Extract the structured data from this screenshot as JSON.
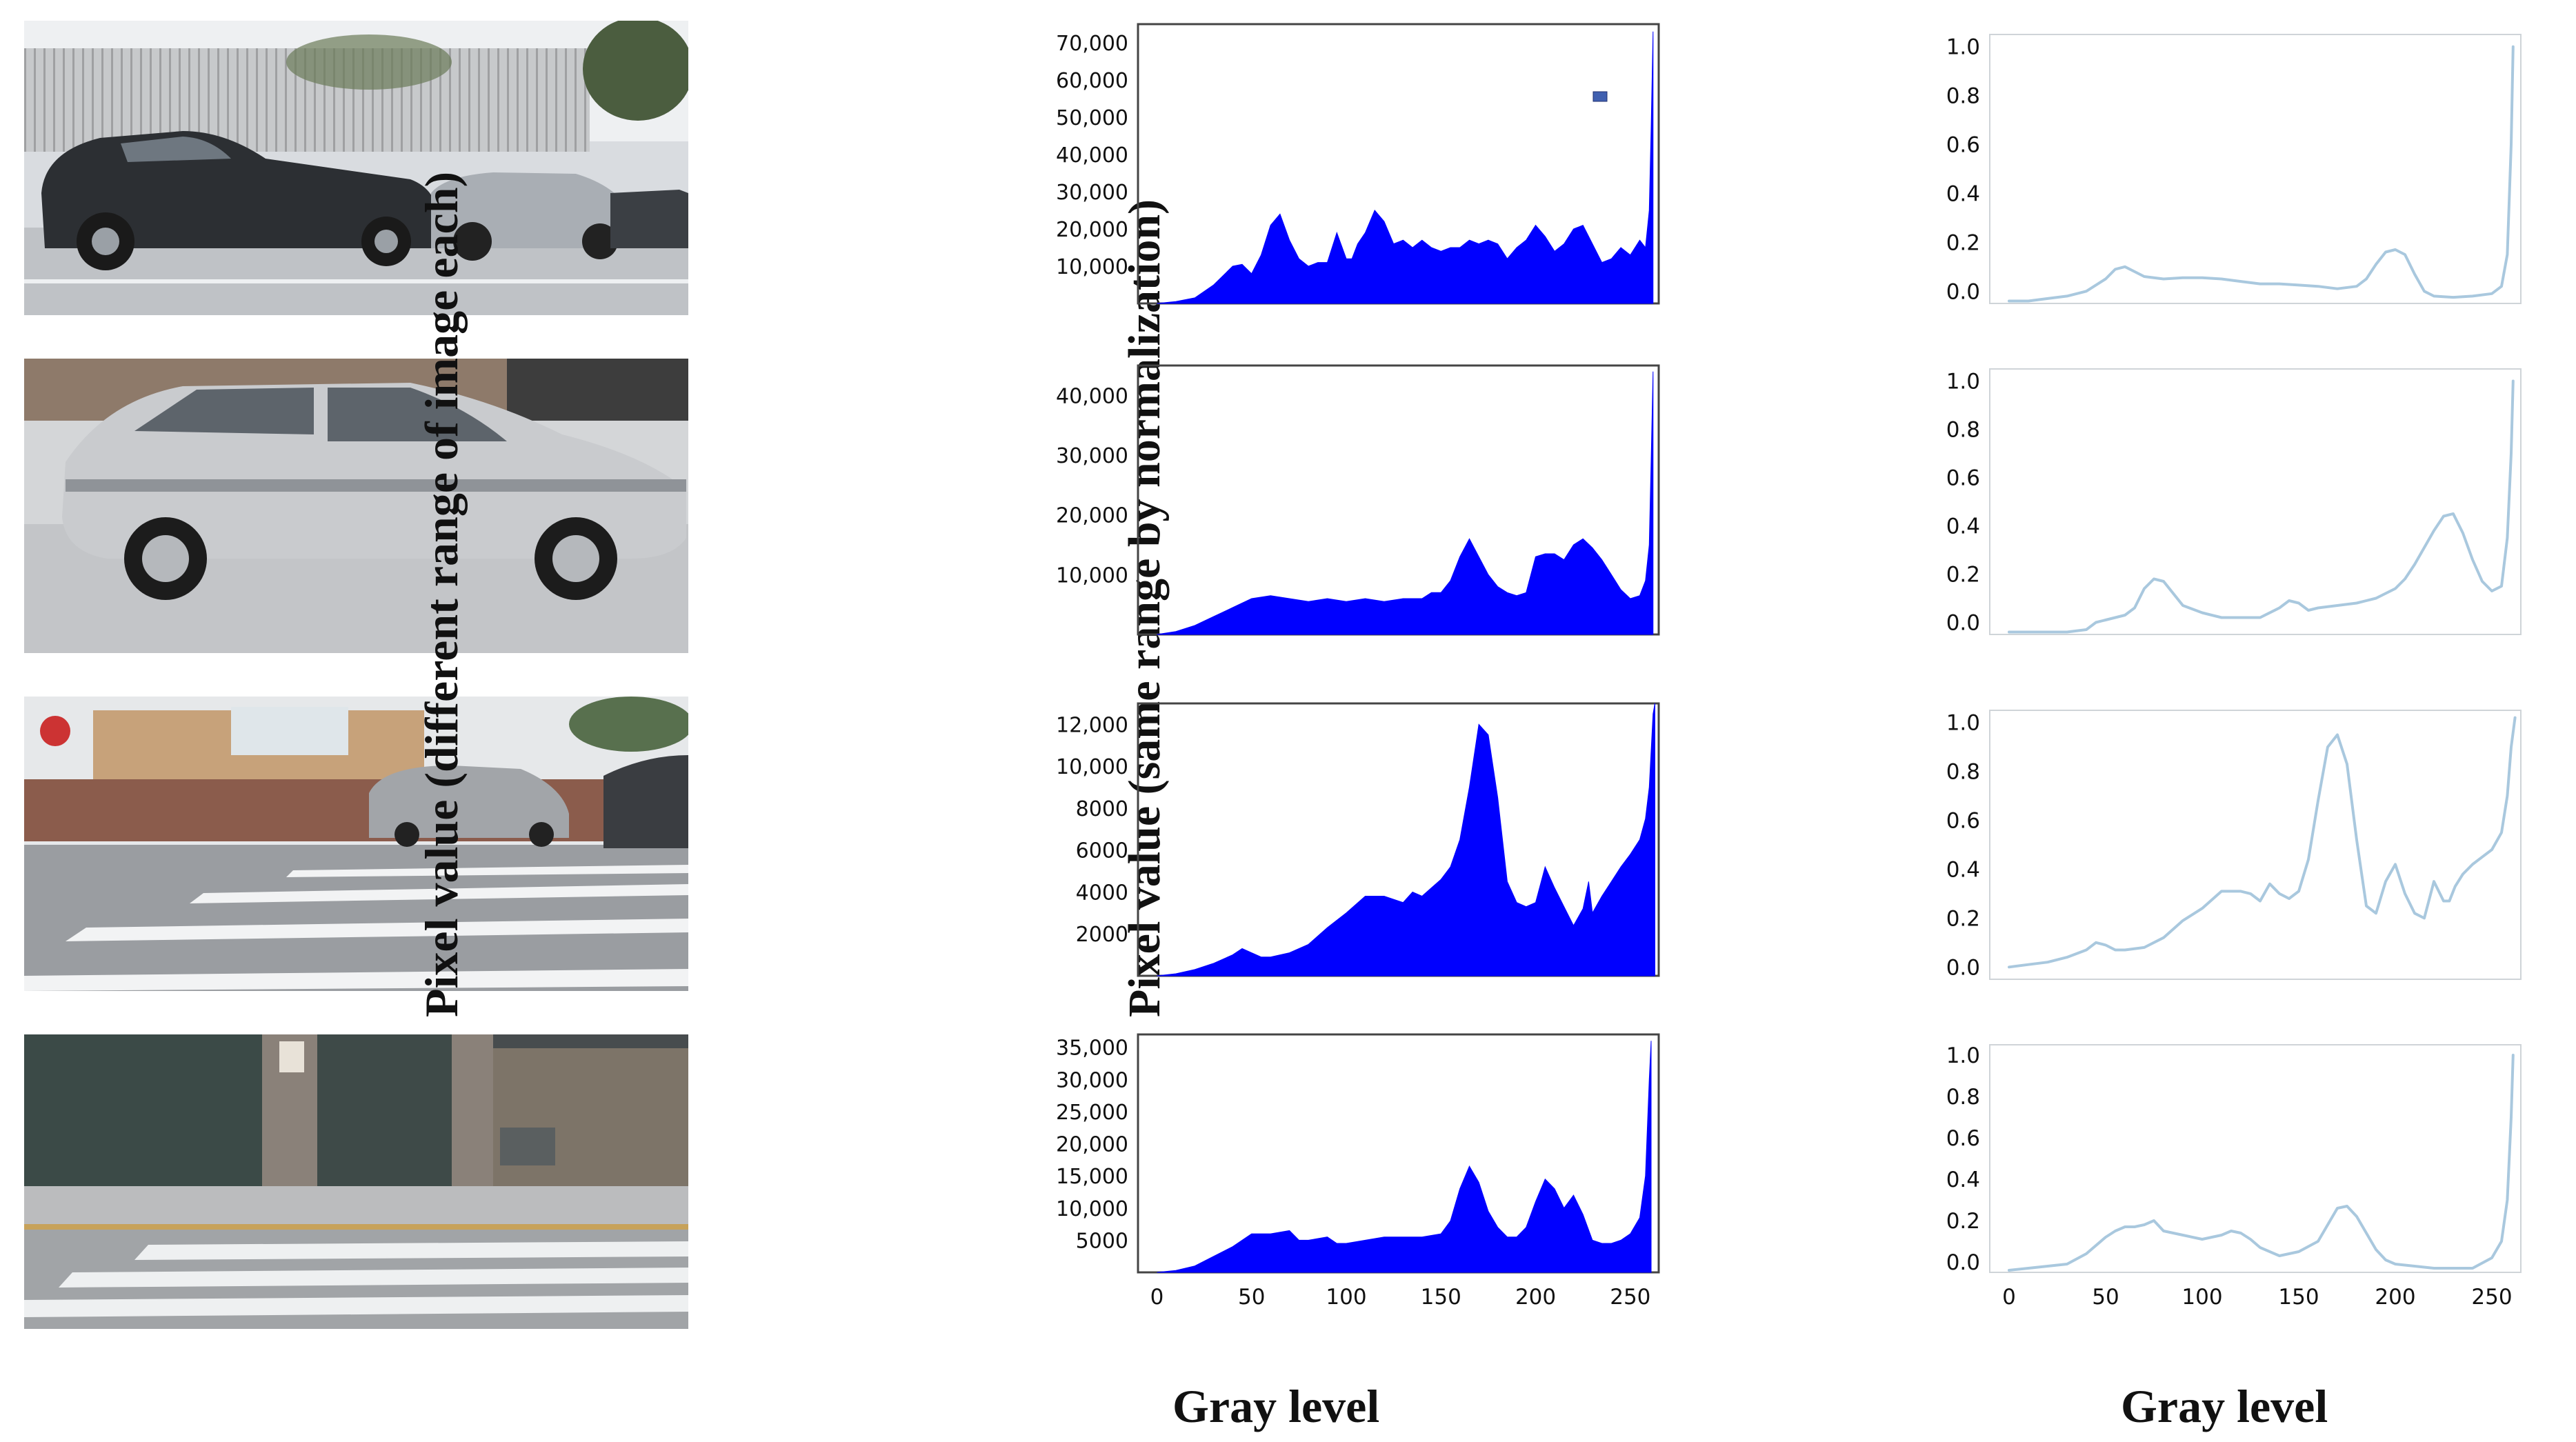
{
  "axis_titles": {
    "left_y": "Pixel value (different range of image each)",
    "right_y": "Pixel value (same range by normalization)",
    "left_x": "Gray level",
    "right_x": "Gray level"
  },
  "colors": {
    "histogram_fill": "#0000ff",
    "normalized_line": "#a9c8de"
  },
  "photos": [
    {
      "scene": "street with parked dark hatchback and silver cars"
    },
    {
      "scene": "silver car parked on street"
    },
    {
      "scene": "pedestrian crosswalk with parked vans"
    },
    {
      "scene": "crosswalk in front of gated wall"
    }
  ],
  "chart_data": [
    {
      "type": "area",
      "panel": "histogram-1",
      "xlim": [
        -10,
        265
      ],
      "ylim": [
        0,
        75000
      ],
      "xticks": [
        0,
        50,
        100,
        150,
        200,
        250
      ],
      "xtick_labels": [
        "",
        "",
        "",
        "",
        "",
        ""
      ],
      "yticks": [
        10000,
        20000,
        30000,
        40000,
        50000,
        60000,
        70000
      ],
      "ytick_labels": [
        "10,000",
        "20,000",
        "30,000",
        "40,000",
        "50,000",
        "60,000",
        "70,000"
      ],
      "x": [
        0,
        10,
        20,
        30,
        40,
        45,
        50,
        55,
        60,
        65,
        70,
        75,
        80,
        85,
        90,
        95,
        100,
        103,
        106,
        110,
        115,
        120,
        125,
        130,
        135,
        140,
        145,
        150,
        155,
        160,
        165,
        170,
        175,
        180,
        185,
        190,
        195,
        200,
        205,
        210,
        215,
        220,
        225,
        230,
        235,
        240,
        245,
        250,
        255,
        258,
        260,
        261,
        262
      ],
      "values": [
        0,
        500,
        1500,
        5000,
        10000,
        10500,
        8000,
        13000,
        21000,
        24000,
        17000,
        12000,
        10000,
        11000,
        11000,
        19000,
        12000,
        12000,
        16000,
        19000,
        25000,
        22000,
        16000,
        17000,
        15000,
        17000,
        15000,
        14000,
        15000,
        15000,
        17000,
        16000,
        17000,
        16000,
        12000,
        15000,
        17000,
        21000,
        18000,
        14000,
        16000,
        20000,
        21000,
        16000,
        11000,
        12000,
        15000,
        13000,
        17000,
        15000,
        25000,
        47000,
        73000
      ]
    },
    {
      "type": "area",
      "panel": "histogram-2",
      "xlim": [
        -10,
        265
      ],
      "ylim": [
        0,
        45000
      ],
      "xticks": [
        0,
        50,
        100,
        150,
        200,
        250
      ],
      "xtick_labels": [
        "",
        "",
        "",
        "",
        "",
        ""
      ],
      "yticks": [
        10000,
        20000,
        30000,
        40000
      ],
      "ytick_labels": [
        "10,000",
        "20,000",
        "30,000",
        "40,000"
      ],
      "x": [
        0,
        10,
        20,
        30,
        40,
        50,
        60,
        70,
        80,
        90,
        100,
        110,
        120,
        130,
        140,
        145,
        150,
        155,
        160,
        165,
        170,
        175,
        180,
        185,
        190,
        195,
        200,
        205,
        210,
        215,
        220,
        225,
        230,
        235,
        240,
        245,
        250,
        255,
        258,
        260,
        261,
        262
      ],
      "values": [
        0,
        500,
        1500,
        3000,
        4500,
        6000,
        6500,
        6000,
        5500,
        6000,
        5500,
        6000,
        5500,
        6000,
        6000,
        7000,
        7000,
        9000,
        13000,
        16000,
        13000,
        10000,
        8000,
        7000,
        6500,
        7000,
        13000,
        13500,
        13500,
        12500,
        15000,
        16000,
        14500,
        12500,
        10000,
        7500,
        6000,
        6500,
        9000,
        15000,
        29000,
        44000
      ]
    },
    {
      "type": "area",
      "panel": "histogram-3",
      "xlim": [
        -10,
        265
      ],
      "ylim": [
        0,
        13000
      ],
      "xticks": [
        0,
        50,
        100,
        150,
        200,
        250
      ],
      "xtick_labels": [
        "",
        "",
        "",
        "",
        "",
        ""
      ],
      "yticks": [
        2000,
        4000,
        6000,
        8000,
        10000,
        12000
      ],
      "ytick_labels": [
        "2000",
        "4000",
        "6000",
        "8000",
        "10,000",
        "12,000"
      ],
      "x": [
        0,
        10,
        20,
        30,
        40,
        45,
        50,
        55,
        60,
        70,
        80,
        90,
        100,
        110,
        120,
        130,
        135,
        140,
        145,
        150,
        155,
        160,
        165,
        170,
        175,
        180,
        185,
        190,
        195,
        200,
        205,
        210,
        215,
        220,
        225,
        228,
        230,
        235,
        240,
        245,
        250,
        255,
        258,
        260,
        262,
        263
      ],
      "values": [
        0,
        100,
        300,
        600,
        1000,
        1300,
        1100,
        900,
        900,
        1100,
        1500,
        2300,
        3000,
        3800,
        3800,
        3500,
        4000,
        3800,
        4200,
        4600,
        5200,
        6500,
        9000,
        12000,
        11500,
        8500,
        4500,
        3500,
        3300,
        3500,
        5200,
        4200,
        3300,
        2400,
        3200,
        4500,
        3000,
        3800,
        4500,
        5200,
        5800,
        6500,
        7500,
        9000,
        12500,
        13000
      ]
    },
    {
      "type": "area",
      "panel": "histogram-4",
      "xlim": [
        -10,
        265
      ],
      "ylim": [
        0,
        37000
      ],
      "xticks": [
        0,
        50,
        100,
        150,
        200,
        250
      ],
      "xtick_labels": [
        "0",
        "50",
        "100",
        "150",
        "200",
        "250"
      ],
      "yticks": [
        5000,
        10000,
        15000,
        20000,
        25000,
        30000,
        35000
      ],
      "ytick_labels": [
        "5000",
        "10,000",
        "15,000",
        "20,000",
        "25,000",
        "30,000",
        "35,000"
      ],
      "x": [
        0,
        10,
        20,
        30,
        40,
        50,
        60,
        70,
        75,
        80,
        90,
        95,
        100,
        110,
        120,
        130,
        140,
        150,
        155,
        160,
        165,
        170,
        175,
        180,
        185,
        190,
        195,
        200,
        205,
        210,
        215,
        220,
        225,
        230,
        235,
        240,
        245,
        250,
        255,
        258,
        260,
        261
      ],
      "values": [
        0,
        300,
        1000,
        2500,
        4000,
        6000,
        6000,
        6500,
        5000,
        5000,
        5500,
        4500,
        4500,
        5000,
        5500,
        5500,
        5500,
        6000,
        8000,
        13000,
        16500,
        14000,
        9500,
        7000,
        5500,
        5500,
        7000,
        11000,
        14500,
        13000,
        10000,
        12000,
        9000,
        5000,
        4500,
        4500,
        5000,
        6000,
        8500,
        15000,
        30000,
        36000
      ]
    },
    {
      "type": "line",
      "panel": "normalized-1",
      "xlim": [
        -10,
        265
      ],
      "ylim": [
        -0.05,
        1.05
      ],
      "xticks": [
        0,
        50,
        100,
        150,
        200,
        250
      ],
      "xtick_labels": [
        "",
        "",
        "",
        "",
        "",
        ""
      ],
      "yticks": [
        0.0,
        0.2,
        0.4,
        0.6,
        0.8,
        1.0
      ],
      "ytick_labels": [
        "0.0",
        "0.2",
        "0.4",
        "0.6",
        "0.8",
        "1.0"
      ],
      "x": [
        0,
        10,
        20,
        30,
        40,
        50,
        55,
        60,
        65,
        70,
        80,
        90,
        100,
        110,
        120,
        130,
        140,
        150,
        160,
        170,
        180,
        185,
        190,
        195,
        200,
        205,
        210,
        215,
        220,
        230,
        240,
        250,
        255,
        258,
        260,
        261
      ],
      "values": [
        -0.04,
        -0.04,
        -0.03,
        -0.02,
        0.0,
        0.05,
        0.09,
        0.1,
        0.08,
        0.06,
        0.05,
        0.055,
        0.055,
        0.05,
        0.04,
        0.03,
        0.03,
        0.025,
        0.02,
        0.01,
        0.02,
        0.05,
        0.11,
        0.16,
        0.17,
        0.15,
        0.07,
        0.0,
        -0.02,
        -0.025,
        -0.02,
        -0.01,
        0.02,
        0.15,
        0.6,
        1.0
      ]
    },
    {
      "type": "line",
      "panel": "normalized-2",
      "xlim": [
        -10,
        265
      ],
      "ylim": [
        -0.05,
        1.05
      ],
      "xticks": [
        0,
        50,
        100,
        150,
        200,
        250
      ],
      "xtick_labels": [
        "",
        "",
        "",
        "",
        "",
        ""
      ],
      "yticks": [
        0.0,
        0.2,
        0.4,
        0.6,
        0.8,
        1.0
      ],
      "ytick_labels": [
        "0.0",
        "0.2",
        "0.4",
        "0.6",
        "0.8",
        "1.0"
      ],
      "x": [
        0,
        10,
        20,
        30,
        40,
        45,
        50,
        60,
        65,
        70,
        75,
        80,
        85,
        90,
        100,
        110,
        120,
        130,
        140,
        145,
        150,
        155,
        160,
        170,
        180,
        190,
        200,
        205,
        210,
        215,
        220,
        225,
        230,
        235,
        240,
        245,
        250,
        255,
        258,
        260,
        261
      ],
      "values": [
        -0.04,
        -0.04,
        -0.04,
        -0.04,
        -0.03,
        0.0,
        0.01,
        0.03,
        0.06,
        0.14,
        0.18,
        0.17,
        0.12,
        0.07,
        0.04,
        0.02,
        0.02,
        0.02,
        0.06,
        0.09,
        0.08,
        0.05,
        0.06,
        0.07,
        0.08,
        0.1,
        0.14,
        0.18,
        0.24,
        0.31,
        0.38,
        0.44,
        0.45,
        0.37,
        0.26,
        0.17,
        0.13,
        0.15,
        0.35,
        0.7,
        1.0
      ]
    },
    {
      "type": "line",
      "panel": "normalized-3",
      "xlim": [
        -10,
        265
      ],
      "ylim": [
        -0.05,
        1.05
      ],
      "xticks": [
        0,
        50,
        100,
        150,
        200,
        250
      ],
      "xtick_labels": [
        "",
        "",
        "",
        "",
        "",
        ""
      ],
      "yticks": [
        0.0,
        0.2,
        0.4,
        0.6,
        0.8,
        1.0
      ],
      "ytick_labels": [
        "0.0",
        "0.2",
        "0.4",
        "0.6",
        "0.8",
        "1.0"
      ],
      "x": [
        0,
        10,
        20,
        30,
        40,
        45,
        50,
        55,
        60,
        70,
        80,
        90,
        100,
        110,
        120,
        125,
        130,
        135,
        140,
        145,
        150,
        155,
        160,
        165,
        170,
        175,
        180,
        185,
        190,
        195,
        200,
        205,
        210,
        215,
        220,
        225,
        228,
        231,
        235,
        240,
        245,
        250,
        255,
        258,
        260,
        262
      ],
      "values": [
        0.0,
        0.01,
        0.02,
        0.04,
        0.07,
        0.1,
        0.09,
        0.07,
        0.07,
        0.08,
        0.12,
        0.19,
        0.24,
        0.31,
        0.31,
        0.3,
        0.27,
        0.34,
        0.3,
        0.28,
        0.31,
        0.44,
        0.68,
        0.9,
        0.95,
        0.83,
        0.52,
        0.25,
        0.22,
        0.35,
        0.42,
        0.3,
        0.22,
        0.2,
        0.35,
        0.27,
        0.27,
        0.33,
        0.38,
        0.42,
        0.45,
        0.48,
        0.55,
        0.7,
        0.9,
        1.02
      ]
    },
    {
      "type": "line",
      "panel": "normalized-4",
      "xlim": [
        -10,
        265
      ],
      "ylim": [
        -0.05,
        1.05
      ],
      "xticks": [
        0,
        50,
        100,
        150,
        200,
        250
      ],
      "xtick_labels": [
        "0",
        "50",
        "100",
        "150",
        "200",
        "250"
      ],
      "yticks": [
        0.0,
        0.2,
        0.4,
        0.6,
        0.8,
        1.0
      ],
      "ytick_labels": [
        "0.0",
        "0.2",
        "0.4",
        "0.6",
        "0.8",
        "1.0"
      ],
      "x": [
        0,
        10,
        20,
        30,
        40,
        50,
        55,
        60,
        65,
        70,
        75,
        80,
        90,
        100,
        110,
        115,
        120,
        125,
        130,
        140,
        150,
        160,
        165,
        170,
        175,
        180,
        185,
        190,
        195,
        200,
        210,
        220,
        230,
        240,
        250,
        255,
        258,
        260,
        261
      ],
      "values": [
        -0.04,
        -0.03,
        -0.02,
        -0.01,
        0.04,
        0.12,
        0.15,
        0.17,
        0.17,
        0.18,
        0.2,
        0.15,
        0.13,
        0.11,
        0.13,
        0.15,
        0.14,
        0.11,
        0.07,
        0.03,
        0.05,
        0.1,
        0.18,
        0.26,
        0.27,
        0.22,
        0.14,
        0.06,
        0.01,
        -0.01,
        -0.02,
        -0.03,
        -0.03,
        -0.03,
        0.02,
        0.1,
        0.3,
        0.7,
        1.0
      ]
    }
  ]
}
